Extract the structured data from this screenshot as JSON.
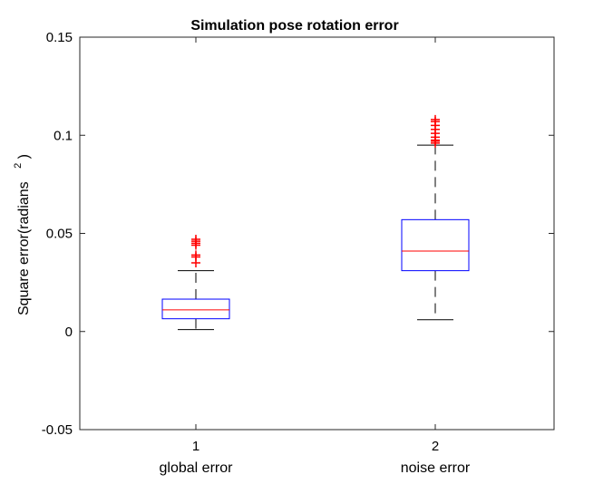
{
  "chart_data": {
    "type": "box",
    "title": "Simulation pose rotation error",
    "ylabel": "Square error(radians",
    "ylabel_superscript": "2",
    "ylabel_close": ")",
    "ylim": [
      -0.05,
      0.15
    ],
    "yticks": [
      -0.05,
      0,
      0.05,
      0.1,
      0.15
    ],
    "ytick_labels": [
      "-0.05",
      "0",
      "0.05",
      "0.1",
      "0.15"
    ],
    "grid": false,
    "xticks": [
      "1",
      "2"
    ],
    "categories": [
      "global error",
      "noise error"
    ],
    "boxes": [
      {
        "min": 0.001,
        "q1": 0.0065,
        "median": 0.011,
        "q3": 0.0165,
        "max": 0.031,
        "outliers": [
          0.035,
          0.038,
          0.039,
          0.044,
          0.045,
          0.046,
          0.047
        ]
      },
      {
        "min": 0.006,
        "q1": 0.031,
        "median": 0.041,
        "q3": 0.057,
        "max": 0.095,
        "outliers": [
          0.096,
          0.097,
          0.0975,
          0.099,
          0.101,
          0.103,
          0.105,
          0.107,
          0.108
        ]
      }
    ],
    "colors": {
      "box": "#0000ff",
      "median": "#ff0000",
      "whisker": "#000000",
      "outlier": "#ff0000"
    }
  }
}
